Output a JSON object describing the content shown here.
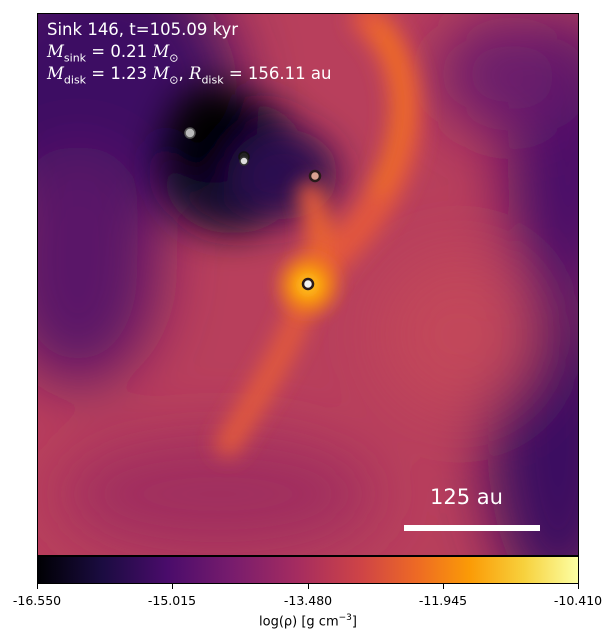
{
  "overlay": {
    "line1": "Sink 146, t=105.09 kyr",
    "msink_value": "0.21",
    "mdisk_value": "1.23",
    "rdisk_value": "156.11",
    "unit_au": "au"
  },
  "scalebar": {
    "label": "125 au"
  },
  "colorbar": {
    "min": "-16.550",
    "ticks": [
      "-16.550",
      "-15.015",
      "-13.480",
      "-11.945",
      "-10.410"
    ],
    "label_text": "log(ρ) [g cm",
    "label_exp": "−3",
    "label_close": "]",
    "colormap": "inferno"
  },
  "colors": {
    "background": "#c04a5a",
    "void": "#0d0620",
    "filament": "#f0701e",
    "core": "#ffc020",
    "text": "#ffffff"
  }
}
